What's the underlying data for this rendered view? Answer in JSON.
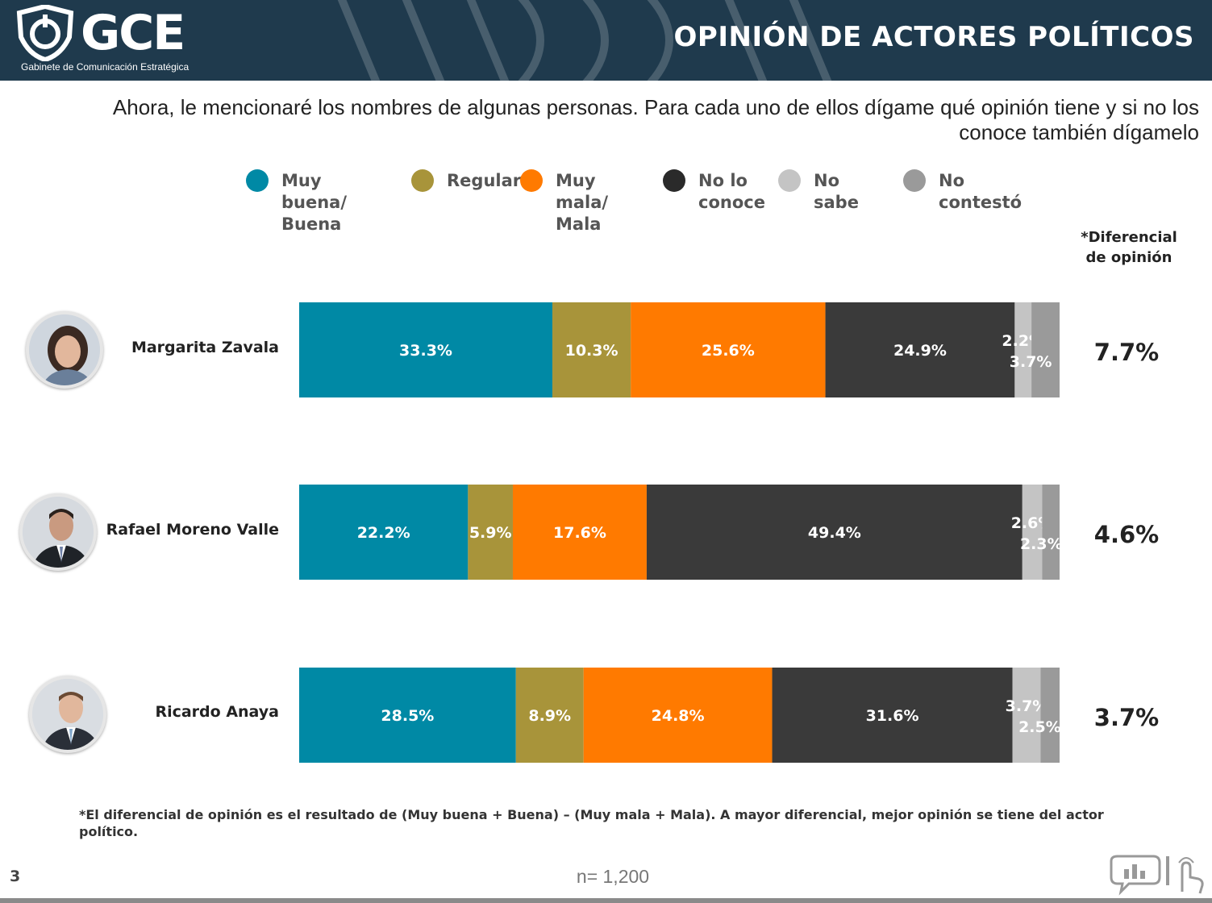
{
  "header": {
    "logo_text": "GCE",
    "logo_subtitle": "Gabinete de Comunicación Estratégica",
    "title": "OPINIÓN DE ACTORES POLÍTICOS",
    "bg_color": "#1f3a4d"
  },
  "question": "Ahora, le mencionaré los nombres de algunas personas. Para cada uno de ellos dígame qué opinión tiene y si no los conoce también dígamelo",
  "diff_header": "*Diferencial\nde opinión",
  "footnote": "*El diferencial de opinión es el resultado de (Muy buena + Buena) – (Muy mala + Mala).  A mayor diferencial, mejor opinión se tiene del actor político.",
  "page_number": "3",
  "sample_size": "n= 1,200",
  "chart_data": {
    "type": "bar",
    "orientation": "horizontal",
    "stacked": true,
    "categories": [
      "Margarita Zavala",
      "Rafael Moreno Valle",
      "Ricardo Anaya"
    ],
    "series": [
      {
        "name": "Muy buena/ Buena",
        "color": "#0089a5",
        "values": [
          33.3,
          22.2,
          28.5
        ],
        "labels": [
          "33.3%",
          "22.2%",
          "28.5%"
        ]
      },
      {
        "name": "Regular",
        "color": "#a8943a",
        "values": [
          10.3,
          5.9,
          8.9
        ],
        "labels": [
          "10.3%",
          "5.9%",
          "8.9%"
        ]
      },
      {
        "name": "Muy mala/ Mala",
        "color": "#ff7a00",
        "values": [
          25.6,
          17.6,
          24.8
        ],
        "labels": [
          "25.6%",
          "17.6%",
          "24.8%"
        ]
      },
      {
        "name": "No lo conoce",
        "color": "#3a3a3a",
        "values": [
          24.9,
          49.4,
          31.6
        ],
        "labels": [
          "24.9%",
          "49.4%",
          "31.6%"
        ]
      },
      {
        "name": "No sabe",
        "color": "#c4c4c4",
        "values": [
          2.2,
          2.6,
          3.7
        ],
        "labels": [
          "2.2%",
          "2.6%",
          "3.7%"
        ]
      },
      {
        "name": "No contestó",
        "color": "#9a9a9a",
        "values": [
          3.7,
          2.3,
          2.5
        ],
        "labels": [
          "3.7%",
          "2.3%",
          "2.5%"
        ]
      }
    ],
    "differential": [
      "7.7%",
      "4.6%",
      "3.7%"
    ],
    "xlim": [
      0,
      100
    ],
    "legend_labels": [
      "Muy buena/\nBuena",
      "Regular",
      "Muy mala/\nMala",
      "No lo\nconoce",
      "No sabe",
      "No contestó"
    ],
    "legend_position": "top",
    "grid": false
  }
}
